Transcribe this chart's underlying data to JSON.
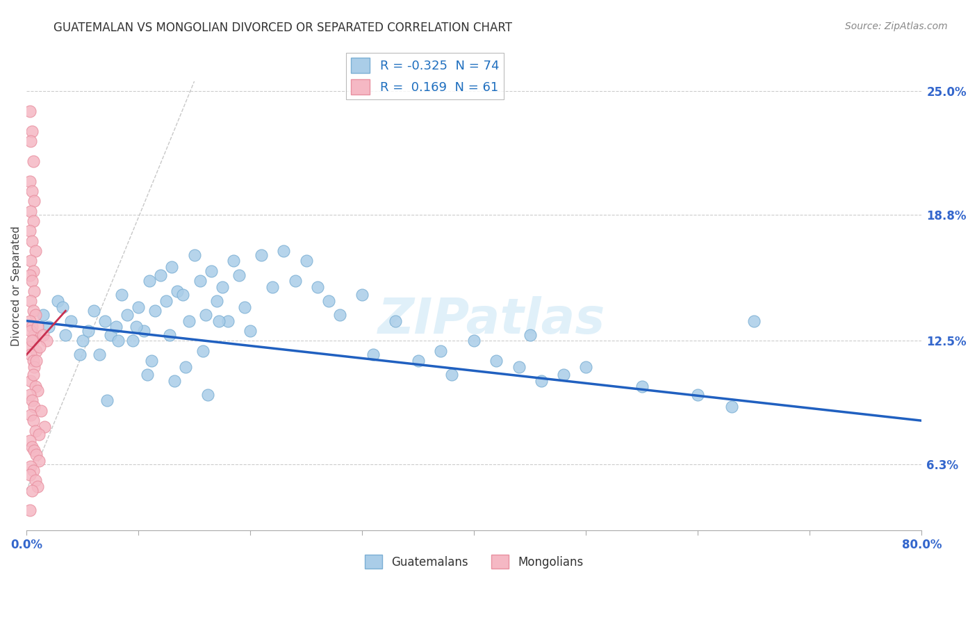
{
  "title": "GUATEMALAN VS MONGOLIAN DIVORCED OR SEPARATED CORRELATION CHART",
  "source": "Source: ZipAtlas.com",
  "ylabel": "Divorced or Separated",
  "ytick_values": [
    6.3,
    12.5,
    18.8,
    25.0
  ],
  "xmin": 0.0,
  "xmax": 80.0,
  "ymin": 3.0,
  "ymax": 27.5,
  "legend_blue_r": "-0.325",
  "legend_blue_n": "74",
  "legend_pink_r": "0.169",
  "legend_pink_n": "61",
  "blue_color": "#aacde8",
  "pink_color": "#f5b8c4",
  "blue_edge_color": "#7bafd4",
  "pink_edge_color": "#e890a0",
  "blue_line_color": "#2060c0",
  "pink_line_color": "#c83050",
  "diagonal_color": "#c8c8c8",
  "watermark": "ZIPatlas",
  "blue_line_x0": 0.0,
  "blue_line_y0": 13.5,
  "blue_line_x1": 80.0,
  "blue_line_y1": 8.5,
  "pink_line_x0": 0.0,
  "pink_line_y0": 11.8,
  "pink_line_x1": 3.5,
  "pink_line_y1": 14.0,
  "blue_points_x": [
    1.5,
    2.0,
    2.8,
    3.5,
    4.0,
    5.0,
    5.5,
    6.0,
    7.0,
    7.5,
    8.0,
    8.5,
    9.0,
    9.5,
    10.0,
    10.5,
    11.0,
    11.5,
    12.0,
    12.5,
    13.0,
    13.5,
    14.0,
    14.5,
    15.0,
    15.5,
    16.0,
    16.5,
    17.0,
    17.5,
    18.0,
    18.5,
    19.0,
    19.5,
    20.0,
    21.0,
    22.0,
    23.0,
    24.0,
    25.0,
    26.0,
    27.0,
    28.0,
    30.0,
    31.0,
    33.0,
    35.0,
    37.0,
    38.0,
    40.0,
    42.0,
    44.0,
    45.0,
    46.0,
    48.0,
    50.0,
    55.0,
    60.0,
    63.0,
    65.0,
    6.5,
    8.2,
    9.8,
    11.2,
    12.8,
    14.2,
    15.8,
    17.2,
    3.2,
    4.8,
    7.2,
    10.8,
    13.2,
    16.2
  ],
  "blue_points_y": [
    13.8,
    13.2,
    14.5,
    12.8,
    13.5,
    12.5,
    13.0,
    14.0,
    13.5,
    12.8,
    13.2,
    14.8,
    13.8,
    12.5,
    14.2,
    13.0,
    15.5,
    14.0,
    15.8,
    14.5,
    16.2,
    15.0,
    14.8,
    13.5,
    16.8,
    15.5,
    13.8,
    16.0,
    14.5,
    15.2,
    13.5,
    16.5,
    15.8,
    14.2,
    13.0,
    16.8,
    15.2,
    17.0,
    15.5,
    16.5,
    15.2,
    14.5,
    13.8,
    14.8,
    11.8,
    13.5,
    11.5,
    12.0,
    10.8,
    12.5,
    11.5,
    11.2,
    12.8,
    10.5,
    10.8,
    11.2,
    10.2,
    9.8,
    9.2,
    13.5,
    11.8,
    12.5,
    13.2,
    11.5,
    12.8,
    11.2,
    12.0,
    13.5,
    14.2,
    11.8,
    9.5,
    10.8,
    10.5,
    9.8
  ],
  "pink_points_x": [
    0.3,
    0.5,
    0.4,
    0.6,
    0.3,
    0.5,
    0.7,
    0.4,
    0.6,
    0.3,
    0.5,
    0.8,
    0.4,
    0.6,
    0.3,
    0.5,
    0.7,
    0.4,
    0.6,
    0.8,
    0.3,
    0.5,
    0.7,
    0.4,
    0.6,
    0.3,
    0.9,
    0.5,
    0.4,
    0.6,
    1.0,
    1.5,
    1.8,
    0.7,
    0.9,
    1.2,
    0.4,
    0.6,
    0.8,
    1.0,
    0.3,
    0.5,
    0.7,
    1.3,
    0.4,
    0.6,
    1.6,
    0.8,
    1.1,
    0.3,
    0.5,
    0.7,
    0.9,
    1.1,
    0.4,
    0.6,
    0.3,
    0.8,
    1.0,
    0.5,
    0.3
  ],
  "pink_points_y": [
    24.0,
    23.0,
    22.5,
    21.5,
    20.5,
    20.0,
    19.5,
    19.0,
    18.5,
    18.0,
    17.5,
    17.0,
    16.5,
    16.0,
    15.8,
    15.5,
    15.0,
    14.5,
    14.0,
    13.8,
    13.5,
    13.2,
    12.8,
    13.0,
    12.5,
    12.2,
    12.0,
    12.5,
    11.8,
    11.5,
    13.2,
    12.8,
    12.5,
    11.2,
    11.5,
    12.2,
    10.5,
    10.8,
    10.2,
    10.0,
    9.8,
    9.5,
    9.2,
    9.0,
    8.8,
    8.5,
    8.2,
    8.0,
    7.8,
    7.5,
    7.2,
    7.0,
    6.8,
    6.5,
    6.2,
    6.0,
    5.8,
    5.5,
    5.2,
    5.0,
    4.0
  ]
}
